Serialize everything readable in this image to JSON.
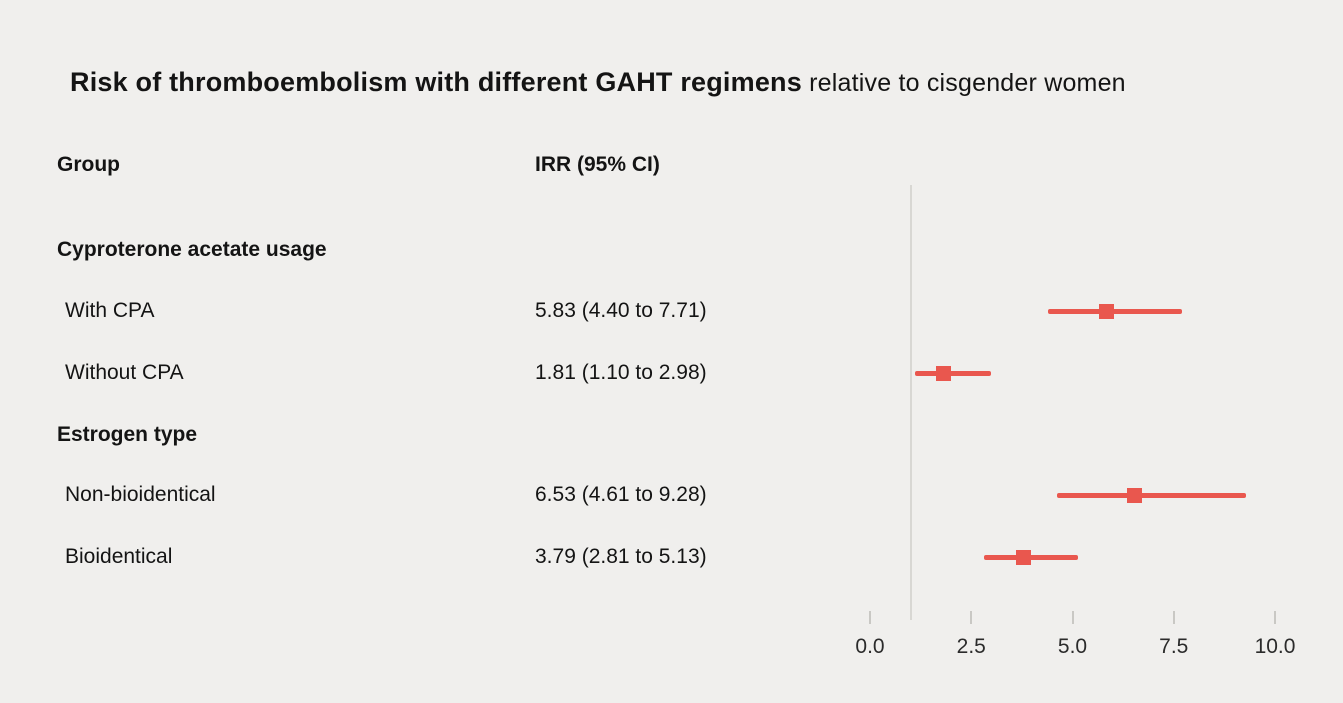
{
  "title": {
    "main": "Risk of thromboembolism with different GAHT regimens",
    "suffix": " relative to cisgender women"
  },
  "columns": {
    "group": "Group",
    "irr": "IRR (95% CI)"
  },
  "chart_data": {
    "type": "scatter",
    "subtype": "forest-plot",
    "title": "Risk of thromboembolism with different GAHT regimens relative to cisgender women",
    "xlabel": "",
    "ylabel": "",
    "x_axis": {
      "range": [
        0,
        10
      ],
      "ticks": [
        0.0,
        2.5,
        5.0,
        7.5,
        10.0
      ],
      "tick_labels": [
        "0.0",
        "2.5",
        "5.0",
        "7.5",
        "10.0"
      ],
      "reference_line": 1
    },
    "groups": [
      {
        "header": "Cyproterone acetate usage",
        "rows": [
          {
            "label": "With CPA",
            "irr_text": "5.83 (4.40 to 7.71)",
            "estimate": 5.83,
            "ci_low": 4.4,
            "ci_high": 7.71
          },
          {
            "label": "Without CPA",
            "irr_text": "1.81 (1.10 to 2.98)",
            "estimate": 1.81,
            "ci_low": 1.1,
            "ci_high": 2.98
          }
        ]
      },
      {
        "header": "Estrogen type",
        "rows": [
          {
            "label": "Non-bioidentical",
            "irr_text": "6.53 (4.61 to 9.28)",
            "estimate": 6.53,
            "ci_low": 4.61,
            "ci_high": 9.28
          },
          {
            "label": "Bioidentical",
            "irr_text": "3.79 (2.81 to 5.13)",
            "estimate": 3.79,
            "ci_low": 2.81,
            "ci_high": 5.13
          }
        ]
      }
    ],
    "marker_color": "#e9574e",
    "background": "#f0efed",
    "grid": false,
    "legend": false
  }
}
